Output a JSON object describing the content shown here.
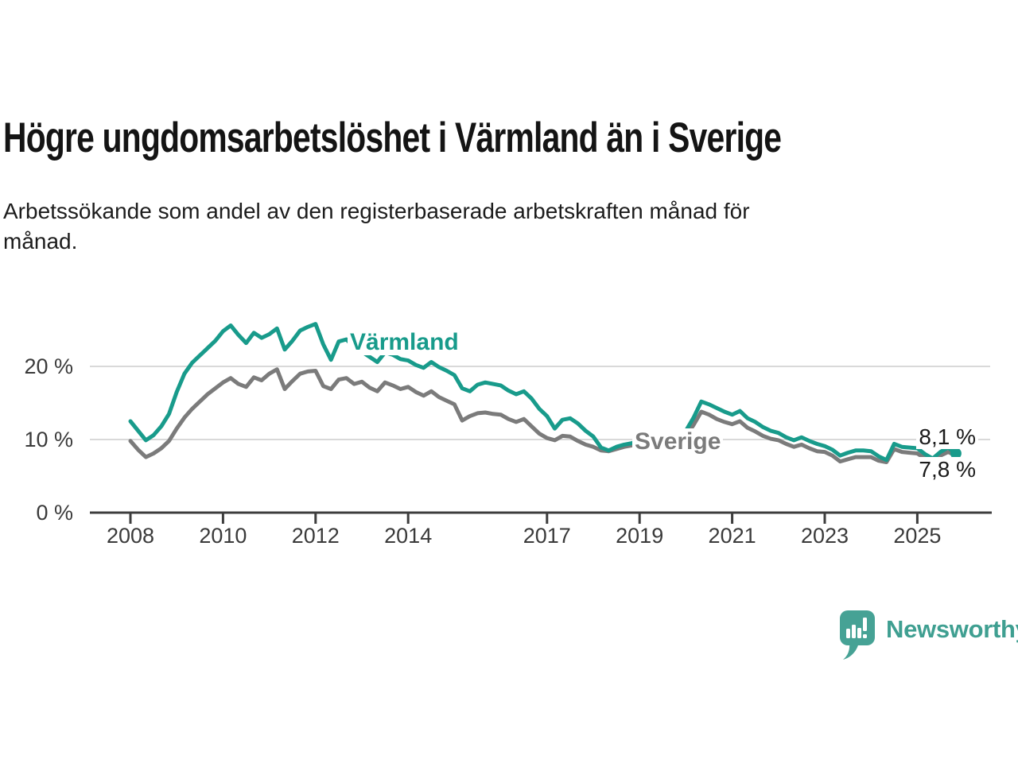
{
  "title": "Högre ungdomsarbetslöshet i Värmland än i Sverige",
  "subtitle": "Arbetssökande som andel av den registerbaserade arbetskraften månad för\nmånad.",
  "branding": {
    "logo_text": "Newsworthy",
    "logo_icon": "newsworthy-speech-bubble-bar-chart-icon",
    "logo_color": "#46a295",
    "logo_text_color": "#3f9f91"
  },
  "chart_data": {
    "type": "line",
    "title": "Högre ungdomsarbetslöshet i Värmland än i Sverige",
    "subtitle": "Arbetssökande som andel av den registerbaserade arbetskraften månad för månad.",
    "unit": "%",
    "grid": true,
    "grid_color": "#d9d9d9",
    "axis_color": "#3d3d3d",
    "ylim": [
      0,
      27
    ],
    "x_start": 2008,
    "x_step": 0.1666667,
    "x_axis": {
      "ticks": [
        {
          "value": 2008,
          "label": "2008"
        },
        {
          "value": 2010,
          "label": "2010"
        },
        {
          "value": 2012,
          "label": "2012"
        },
        {
          "value": 2014,
          "label": "2014"
        },
        {
          "value": 2017,
          "label": "2017"
        },
        {
          "value": 2019,
          "label": "2019"
        },
        {
          "value": 2021,
          "label": "2021"
        },
        {
          "value": 2023,
          "label": "2023"
        },
        {
          "value": 2025,
          "label": "2025"
        }
      ]
    },
    "y_axis": {
      "ticks": [
        {
          "value": 0,
          "label": "0 %"
        },
        {
          "value": 10,
          "label": "10 %"
        },
        {
          "value": 20,
          "label": "20 %"
        }
      ]
    },
    "series": [
      {
        "name": "Värmland",
        "color": "#189b8b",
        "latest_label": "8,1 %",
        "latest_value": 8.1,
        "values": [
          12.5,
          11.2,
          9.9,
          10.6,
          11.8,
          13.5,
          16.5,
          19.0,
          20.5,
          21.5,
          22.5,
          23.5,
          24.8,
          25.6,
          24.3,
          23.2,
          24.6,
          23.9,
          24.4,
          25.2,
          22.3,
          23.5,
          24.9,
          25.4,
          25.8,
          23.0,
          20.9,
          23.4,
          23.7,
          22.6,
          22.0,
          21.3,
          20.6,
          21.9,
          21.6,
          21.0,
          20.8,
          20.2,
          19.8,
          20.6,
          19.9,
          19.4,
          18.8,
          17.0,
          16.6,
          17.5,
          17.8,
          17.6,
          17.4,
          16.7,
          16.2,
          16.6,
          15.6,
          14.2,
          13.2,
          11.5,
          12.7,
          12.9,
          12.2,
          11.2,
          10.4,
          8.9,
          8.5,
          9.0,
          9.3,
          9.5,
          10.0,
          10.3,
          9.8,
          10.2,
          10.4,
          10.6,
          11.2,
          13.0,
          15.2,
          14.8,
          14.3,
          13.8,
          13.4,
          13.9,
          12.9,
          12.4,
          11.7,
          11.2,
          10.9,
          10.3,
          9.9,
          10.3,
          9.8,
          9.4,
          9.1,
          8.6,
          7.8,
          8.2,
          8.5,
          8.5,
          8.4,
          7.7,
          7.2,
          9.4,
          9.0,
          8.9,
          8.8,
          8.0,
          7.4,
          8.3,
          8.9,
          8.1
        ]
      },
      {
        "name": "Sverige",
        "color": "#7b7b7b",
        "latest_label": "7,8 %",
        "latest_value": 7.8,
        "values": [
          9.8,
          8.6,
          7.6,
          8.1,
          8.8,
          9.8,
          11.5,
          13.0,
          14.2,
          15.2,
          16.2,
          17.0,
          17.8,
          18.4,
          17.6,
          17.2,
          18.5,
          18.1,
          19.0,
          19.6,
          16.9,
          18.0,
          19.0,
          19.3,
          19.4,
          17.3,
          16.9,
          18.2,
          18.4,
          17.6,
          17.9,
          17.1,
          16.6,
          17.8,
          17.4,
          16.9,
          17.2,
          16.5,
          16.0,
          16.6,
          15.8,
          15.3,
          14.8,
          12.6,
          13.2,
          13.6,
          13.7,
          13.5,
          13.4,
          12.8,
          12.4,
          12.8,
          11.8,
          10.8,
          10.2,
          9.9,
          10.5,
          10.4,
          9.8,
          9.3,
          9.0,
          8.5,
          8.4,
          8.7,
          9.0,
          9.2,
          9.6,
          9.8,
          9.0,
          8.4,
          9.2,
          9.6,
          10.4,
          12.0,
          13.8,
          13.4,
          12.8,
          12.4,
          12.1,
          12.5,
          11.6,
          11.1,
          10.5,
          10.1,
          9.9,
          9.4,
          9.0,
          9.3,
          8.8,
          8.4,
          8.3,
          7.8,
          7.0,
          7.3,
          7.6,
          7.6,
          7.6,
          7.1,
          6.9,
          8.7,
          8.3,
          8.2,
          8.1,
          7.4,
          7.0,
          7.8,
          8.3,
          7.8
        ]
      }
    ]
  }
}
